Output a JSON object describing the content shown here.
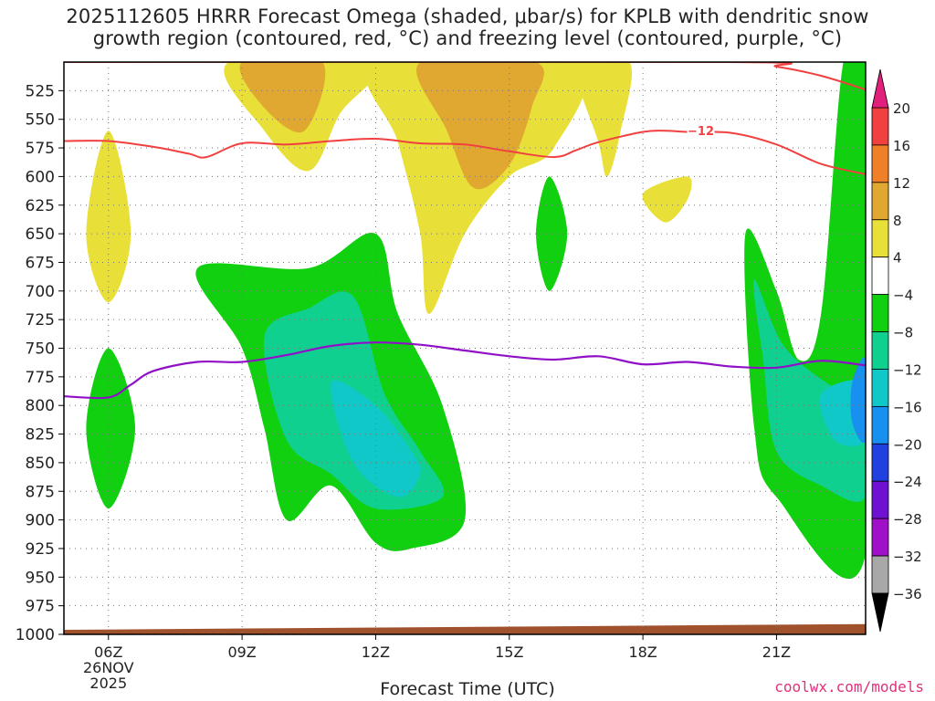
{
  "title": {
    "line1": "2025112605 HRRR Forecast Omega (shaded, μbar/s) for KPLB with dendritic snow",
    "line2": "growth region (contoured, red, °C) and freezing level (contoured, purple, °C)"
  },
  "credit": "coolwx.com/models",
  "chart_data": {
    "type": "heatmap",
    "xlabel": "Forecast Time (UTC)",
    "x_range_hours": [
      5.0,
      23.0
    ],
    "x_ticks": [
      {
        "hour": 6,
        "label": "06Z",
        "sub1": "26NOV",
        "sub2": "2025"
      },
      {
        "hour": 9,
        "label": "09Z"
      },
      {
        "hour": 12,
        "label": "12Z"
      },
      {
        "hour": 15,
        "label": "15Z"
      },
      {
        "hour": 18,
        "label": "18Z"
      },
      {
        "hour": 21,
        "label": "21Z"
      }
    ],
    "y_range_mb": [
      500,
      1000
    ],
    "y_ticks": [
      525,
      550,
      575,
      600,
      625,
      650,
      675,
      700,
      725,
      750,
      775,
      800,
      825,
      850,
      875,
      900,
      925,
      950,
      975,
      1000
    ],
    "colorbar": {
      "levels": [
        -36,
        -32,
        -28,
        -24,
        -20,
        -16,
        -12,
        -8,
        -4,
        4,
        8,
        12,
        16,
        20
      ],
      "labels": [
        "20",
        "16",
        "12",
        "8",
        "4",
        "−4",
        "−8",
        "−12",
        "−16",
        "−20",
        "−24",
        "−28",
        "−32",
        "−36"
      ],
      "colors": {
        "below": "#000000",
        "n36_32": "#a8a8a8",
        "n32_28": "#a010c8",
        "n28_24": "#7010d0",
        "n24_20": "#2040e0",
        "n20_16": "#1890f0",
        "n16_12": "#10c8c8",
        "n12_8": "#10d090",
        "n8_4": "#10d010",
        "zero": "#ffffff",
        "p4_8": "#e8e038",
        "p8_12": "#e0a830",
        "p12_16": "#f08028",
        "p16_20": "#f04040",
        "above": "#e0207a"
      }
    },
    "contour_label": "−12",
    "dgz_line_minus12": [
      [
        5.0,
        569
      ],
      [
        6.0,
        569
      ],
      [
        7.0,
        574
      ],
      [
        7.8,
        580
      ],
      [
        8.2,
        583
      ],
      [
        9.0,
        571
      ],
      [
        10.0,
        572
      ],
      [
        11.0,
        569
      ],
      [
        12.0,
        567
      ],
      [
        13.0,
        571
      ],
      [
        14.0,
        572
      ],
      [
        15.0,
        578
      ],
      [
        16.0,
        583
      ],
      [
        16.5,
        577
      ],
      [
        17.0,
        570
      ],
      [
        18.0,
        561
      ],
      [
        18.5,
        560
      ],
      [
        19.0,
        561
      ],
      [
        20.0,
        562
      ],
      [
        21.0,
        572
      ],
      [
        22.0,
        589
      ],
      [
        23.0,
        598
      ]
    ],
    "dgz_line_upper": [
      [
        5.0,
        500
      ],
      [
        6.0,
        500
      ],
      [
        20.0,
        500
      ],
      [
        21.0,
        504
      ],
      [
        22.0,
        512
      ],
      [
        23.0,
        524
      ]
    ],
    "freezing_level": [
      [
        5.0,
        792
      ],
      [
        6.0,
        793
      ],
      [
        6.5,
        782
      ],
      [
        7.0,
        770
      ],
      [
        8.0,
        762
      ],
      [
        9.0,
        762
      ],
      [
        10.0,
        756
      ],
      [
        11.0,
        748
      ],
      [
        12.0,
        745
      ],
      [
        13.0,
        747
      ],
      [
        14.0,
        752
      ],
      [
        15.0,
        757
      ],
      [
        16.0,
        760
      ],
      [
        17.0,
        757
      ],
      [
        18.0,
        764
      ],
      [
        19.0,
        762
      ],
      [
        20.0,
        766
      ],
      [
        21.0,
        767
      ],
      [
        22.0,
        761
      ],
      [
        23.0,
        765
      ]
    ],
    "terrain_top_mb": [
      [
        5.0,
        996
      ],
      [
        23.0,
        991
      ]
    ],
    "omega_regions": [
      {
        "class": "p4_8",
        "pts": [
          [
            8.7,
            500
          ],
          [
            9.5,
            560
          ],
          [
            10.5,
            595
          ],
          [
            11.2,
            545
          ],
          [
            12.0,
            500
          ]
        ]
      },
      {
        "class": "p4_8",
        "pts": [
          [
            12.0,
            500
          ],
          [
            12.5,
            570
          ],
          [
            13.0,
            650
          ],
          [
            13.2,
            720
          ],
          [
            14.0,
            650
          ],
          [
            15.0,
            600
          ],
          [
            16.0,
            575
          ],
          [
            16.5,
            500
          ]
        ]
      },
      {
        "class": "p4_8",
        "pts": [
          [
            16.5,
            500
          ],
          [
            17.0,
            570
          ],
          [
            17.2,
            600
          ],
          [
            17.5,
            560
          ],
          [
            17.7,
            500
          ]
        ]
      },
      {
        "class": "p4_8",
        "pts": [
          [
            6.0,
            560
          ],
          [
            5.5,
            650
          ],
          [
            6.0,
            710
          ],
          [
            6.5,
            650
          ]
        ]
      },
      {
        "class": "p4_8",
        "pts": [
          [
            18.0,
            615
          ],
          [
            19.0,
            600
          ],
          [
            19.0,
            620
          ],
          [
            18.5,
            640
          ]
        ]
      },
      {
        "class": "p8_12",
        "pts": [
          [
            9.0,
            500
          ],
          [
            9.5,
            540
          ],
          [
            10.4,
            560
          ],
          [
            10.8,
            500
          ]
        ]
      },
      {
        "class": "p8_12",
        "pts": [
          [
            13.0,
            500
          ],
          [
            13.6,
            560
          ],
          [
            14.2,
            610
          ],
          [
            15.0,
            590
          ],
          [
            15.5,
            540
          ],
          [
            15.6,
            500
          ]
        ]
      },
      {
        "class": "n8_4",
        "pts": [
          [
            8.0,
            680
          ],
          [
            9.0,
            750
          ],
          [
            9.5,
            820
          ],
          [
            10.0,
            900
          ],
          [
            11.0,
            870
          ],
          [
            12.0,
            920
          ],
          [
            12.8,
            925
          ],
          [
            14.0,
            900
          ],
          [
            13.5,
            800
          ],
          [
            12.5,
            720
          ],
          [
            12.0,
            650
          ],
          [
            10.5,
            680
          ]
        ]
      },
      {
        "class": "n8_4",
        "pts": [
          [
            6.0,
            750
          ],
          [
            6.6,
            820
          ],
          [
            6.0,
            890
          ],
          [
            5.5,
            820
          ]
        ]
      },
      {
        "class": "n8_4",
        "pts": [
          [
            15.9,
            600
          ],
          [
            16.3,
            650
          ],
          [
            15.9,
            700
          ],
          [
            15.6,
            650
          ]
        ]
      },
      {
        "class": "n8_4",
        "pts": [
          [
            20.3,
            650
          ],
          [
            21.0,
            700
          ],
          [
            21.5,
            760
          ],
          [
            22.0,
            720
          ],
          [
            22.5,
            500
          ],
          [
            23.0,
            500
          ],
          [
            23.0,
            930
          ],
          [
            21.0,
            880
          ],
          [
            20.5,
            820
          ]
        ]
      },
      {
        "class": "n12_8",
        "pts": [
          [
            9.5,
            740
          ],
          [
            10.5,
            715
          ],
          [
            11.5,
            705
          ],
          [
            12.2,
            790
          ],
          [
            13.0,
            840
          ],
          [
            13.5,
            880
          ],
          [
            12.0,
            890
          ],
          [
            11.0,
            860
          ],
          [
            10.0,
            830
          ]
        ]
      },
      {
        "class": "n12_8",
        "pts": [
          [
            20.5,
            690
          ],
          [
            21.2,
            750
          ],
          [
            22.5,
            790
          ],
          [
            23.0,
            800
          ],
          [
            23.0,
            880
          ],
          [
            22.0,
            870
          ],
          [
            21.0,
            840
          ],
          [
            20.7,
            760
          ]
        ]
      },
      {
        "class": "n16_12",
        "pts": [
          [
            11.0,
            780
          ],
          [
            12.0,
            800
          ],
          [
            12.8,
            840
          ],
          [
            13.0,
            860
          ],
          [
            12.5,
            880
          ],
          [
            11.5,
            850
          ]
        ]
      },
      {
        "class": "n16_12",
        "pts": [
          [
            22.0,
            790
          ],
          [
            23.0,
            780
          ],
          [
            23.0,
            830
          ],
          [
            22.3,
            830
          ]
        ]
      },
      {
        "class": "n20_16",
        "pts": [
          [
            22.7,
            780
          ],
          [
            23.0,
            760
          ],
          [
            23.0,
            830
          ],
          [
            22.7,
            815
          ]
        ]
      }
    ]
  }
}
